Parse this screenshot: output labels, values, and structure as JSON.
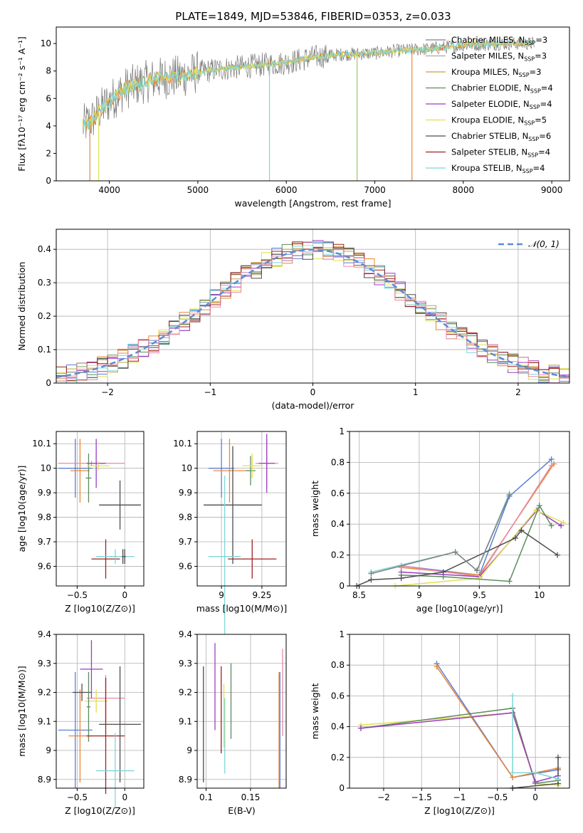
{
  "title": "PLATE=1849, MJD=53846, FIBERID=0353, z=0.033",
  "colors": {
    "Chabrier MILES": "#5b7fd6",
    "Salpeter MILES": "#e8873a",
    "Kroupa MILES": "#c8a040",
    "Chabrier ELODIE": "#5f8a5f",
    "Salpeter ELODIE": "#9a3ec0",
    "Kroupa ELODIE": "#e0e050",
    "Chabrier STELIB": "#4d4d4d",
    "Salpeter STELIB": "#a02020",
    "Kroupa STELIB": "#7fd6d6",
    "normal": "#5b8bd6",
    "pink": "#e88aa8"
  },
  "legend_spectrum": [
    {
      "name": "Chabrier MILES",
      "prefix": "Chabrier MILES, N",
      "sub": "SSP",
      "suffix": "=3",
      "color": "#808080"
    },
    {
      "name": "Salpeter MILES",
      "prefix": "Salpeter MILES, N",
      "sub": "SSP",
      "suffix": "=3",
      "color": "#aaaaaa"
    },
    {
      "name": "Kroupa MILES",
      "prefix": "Kroupa MILES, N",
      "sub": "SSP",
      "suffix": "=3",
      "color": "#c8a040"
    },
    {
      "name": "Chabrier ELODIE",
      "prefix": "Chabrier ELODIE, N",
      "sub": "SSP",
      "suffix": "=4",
      "color": "#5f8a5f"
    },
    {
      "name": "Salpeter ELODIE",
      "prefix": "Salpeter ELODIE, N",
      "sub": "SSP",
      "suffix": "=4",
      "color": "#9a3ec0"
    },
    {
      "name": "Kroupa ELODIE",
      "prefix": "Kroupa ELODIE, N",
      "sub": "SSP",
      "suffix": "=5",
      "color": "#e0e050"
    },
    {
      "name": "Chabrier STELIB",
      "prefix": "Chabrier STELIB, N",
      "sub": "SSP",
      "suffix": "=6",
      "color": "#4d4d4d"
    },
    {
      "name": "Salpeter STELIB",
      "prefix": "Salpeter STELIB, N",
      "sub": "SSP",
      "suffix": "=4",
      "color": "#a02020"
    },
    {
      "name": "Kroupa STELIB",
      "prefix": "Kroupa STELIB, N",
      "sub": "SSP",
      "suffix": "=4",
      "color": "#7fd6d6"
    }
  ],
  "chart_data": [
    {
      "id": "spectrum",
      "type": "line",
      "title": "PLATE=1849, MJD=53846, FIBERID=0353, z=0.033",
      "xlabel": "wavelength [Angstrom, rest frame]",
      "ylabel": "Flux [fλ10⁻¹⁷ erg cm⁻² s⁻¹ A⁻¹]",
      "xlim": [
        3400,
        9200
      ],
      "ylim": [
        0,
        11.2
      ],
      "xticks": [
        4000,
        5000,
        6000,
        7000,
        8000,
        9000
      ],
      "yticks": [
        0,
        2,
        4,
        6,
        8,
        10
      ],
      "continuum": [
        [
          3700,
          4.0
        ],
        [
          3800,
          4.4
        ],
        [
          3900,
          5.2
        ],
        [
          4000,
          5.8
        ],
        [
          4200,
          6.8
        ],
        [
          4400,
          7.2
        ],
        [
          4600,
          7.5
        ],
        [
          4800,
          7.6
        ],
        [
          5000,
          7.9
        ],
        [
          5200,
          8.1
        ],
        [
          5500,
          8.3
        ],
        [
          5800,
          8.5
        ],
        [
          6000,
          8.6
        ],
        [
          6300,
          9.0
        ],
        [
          6600,
          9.2
        ],
        [
          7000,
          9.3
        ],
        [
          7300,
          9.5
        ],
        [
          7600,
          9.6
        ],
        [
          8000,
          9.9
        ],
        [
          8500,
          10.0
        ],
        [
          8700,
          10.0
        ]
      ],
      "dips": [
        {
          "x": 5810,
          "color": "#7fd6d6"
        },
        {
          "x": 6800,
          "color": "#9acc60"
        },
        {
          "x": 7420,
          "color": "#e8873a"
        },
        {
          "x": 3780,
          "color": "#e8873a"
        },
        {
          "x": 3880,
          "color": "#e0e050"
        }
      ]
    },
    {
      "id": "residuals",
      "type": "bar",
      "xlabel": "(data-model)/error",
      "ylabel": "Normed distribution",
      "xlim": [
        -2.5,
        2.5
      ],
      "ylim": [
        0,
        0.46
      ],
      "xticks": [
        -2,
        -1,
        0,
        1,
        2
      ],
      "yticks": [
        0.0,
        0.1,
        0.2,
        0.3,
        0.4
      ],
      "bin_width": 0.1,
      "bin_start": -2.5,
      "bins": 50,
      "legend": "𝒩(0, 1)",
      "series_colors": [
        "#5b7fd6",
        "#e8873a",
        "#c8a040",
        "#5f8a5f",
        "#9a3ec0",
        "#e0e050",
        "#4d4d4d",
        "#a02020",
        "#7fd6d6",
        "#e88aa8"
      ]
    },
    {
      "id": "age_vs_Z",
      "type": "scatter",
      "xlabel": "Z [log10(Z/Z⊙)]",
      "ylabel": "age [log10(age/yr)]",
      "xlim": [
        -0.72,
        0.2
      ],
      "ylim": [
        9.52,
        10.15
      ],
      "xticks": [
        -0.5,
        0.0
      ],
      "yticks": [
        9.6,
        9.7,
        9.8,
        9.9,
        10.0,
        10.1
      ],
      "points": [
        {
          "x": -0.52,
          "y": 10.0,
          "xerr": 0.18,
          "yerr": 0.12,
          "color": "#5b7fd6"
        },
        {
          "x": -0.47,
          "y": 9.99,
          "xerr": 0.1,
          "yerr": 0.13,
          "color": "#e8873a"
        },
        {
          "x": -0.35,
          "y": 10.02,
          "xerr": 0.35,
          "yerr": 0.01,
          "color": "#e88aa8"
        },
        {
          "x": -0.38,
          "y": 9.96,
          "xerr": 0.03,
          "yerr": 0.1,
          "color": "#5f8a5f"
        },
        {
          "x": -0.3,
          "y": 10.02,
          "xerr": 0.1,
          "yerr": 0.1,
          "color": "#9a3ec0"
        },
        {
          "x": -0.28,
          "y": 10.01,
          "xerr": 0.12,
          "yerr": 0.02,
          "color": "#e0e050"
        },
        {
          "x": -0.05,
          "y": 9.85,
          "xerr": 0.22,
          "yerr": 0.1,
          "color": "#4d4d4d"
        },
        {
          "x": -0.2,
          "y": 9.63,
          "xerr": 0.15,
          "yerr": 0.08,
          "color": "#a02020"
        },
        {
          "x": -0.1,
          "y": 9.64,
          "xerr": 0.2,
          "yerr": 0.03,
          "color": "#7fd6d6"
        },
        {
          "x": -0.02,
          "y": 9.64,
          "xerr": 0.01,
          "yerr": 0.03,
          "color": "#4d4d4d"
        },
        {
          "x": 0.0,
          "y": 9.64,
          "xerr": 0.01,
          "yerr": 0.03,
          "color": "#4d4d4d"
        }
      ]
    },
    {
      "id": "age_vs_mass",
      "type": "scatter",
      "xlabel": "mass [log10(M/M⊙)]",
      "ylabel": "",
      "xlim": [
        8.85,
        9.4
      ],
      "ylim": [
        9.52,
        10.15
      ],
      "xticks": [
        9.0,
        9.25
      ],
      "yticks": [
        9.6,
        9.7,
        9.8,
        9.9,
        10.0,
        10.1
      ],
      "points": [
        {
          "x": 9.0,
          "y": 10.0,
          "xerr": 0.08,
          "yerr": 0.12,
          "color": "#5b7fd6"
        },
        {
          "x": 9.05,
          "y": 9.99,
          "xerr": 0.1,
          "yerr": 0.13,
          "color": "#e8873a"
        },
        {
          "x": 9.28,
          "y": 10.02,
          "xerr": 0.07,
          "yerr": 0.1,
          "color": "#e88aa8"
        },
        {
          "x": 9.18,
          "y": 9.99,
          "xerr": 0.03,
          "yerr": 0.06,
          "color": "#5f8a5f"
        },
        {
          "x": 9.28,
          "y": 10.02,
          "xerr": 0.05,
          "yerr": 0.12,
          "color": "#9a3ec0"
        },
        {
          "x": 9.19,
          "y": 10.01,
          "xerr": 0.06,
          "yerr": 0.05,
          "color": "#e0e050"
        },
        {
          "x": 9.07,
          "y": 9.85,
          "xerr": 0.18,
          "yerr": 0.24,
          "color": "#4d4d4d"
        },
        {
          "x": 9.19,
          "y": 9.63,
          "xerr": 0.15,
          "yerr": 0.08,
          "color": "#a02020"
        },
        {
          "x": 9.02,
          "y": 9.64,
          "xerr": 0.1,
          "yerr": 0.33,
          "color": "#7fd6d6"
        }
      ]
    },
    {
      "id": "massweight_vs_age",
      "type": "line",
      "xlabel": "age [log10(age/yr)]",
      "ylabel": "mass weight",
      "xlim": [
        8.42,
        10.25
      ],
      "ylim": [
        0,
        1.0
      ],
      "xticks": [
        8.5,
        9.0,
        9.5,
        10.0
      ],
      "yticks": [
        0.0,
        0.2,
        0.4,
        0.6,
        0.8,
        1.0
      ],
      "series": [
        {
          "color": "#5b7fd6",
          "x": [
            8.85,
            9.5,
            9.75,
            10.1
          ],
          "y": [
            0.13,
            0.07,
            0.58,
            0.82
          ]
        },
        {
          "color": "#e8873a",
          "x": [
            8.85,
            9.5,
            10.12
          ],
          "y": [
            0.12,
            0.07,
            0.79
          ]
        },
        {
          "color": "#e88aa8",
          "x": [
            8.85,
            9.5,
            10.1
          ],
          "y": [
            0.13,
            0.06,
            0.78
          ]
        },
        {
          "color": "#9a3ec0",
          "x": [
            8.85,
            9.5,
            9.98,
            10.18
          ],
          "y": [
            0.09,
            0.06,
            0.49,
            0.39
          ]
        },
        {
          "color": "#e0e050",
          "x": [
            8.8,
            9.5,
            9.97,
            10.2
          ],
          "y": [
            0.0,
            0.05,
            0.49,
            0.41
          ]
        },
        {
          "color": "#5f8a5f",
          "x": [
            8.85,
            9.2,
            9.75,
            10.0,
            10.1
          ],
          "y": [
            0.07,
            0.06,
            0.03,
            0.52,
            0.39
          ]
        },
        {
          "color": "#4d4d4d",
          "x": [
            8.48,
            8.6,
            8.85,
            9.2,
            9.8,
            9.85,
            10.15
          ],
          "y": [
            0.0,
            0.04,
            0.05,
            0.09,
            0.31,
            0.36,
            0.2
          ]
        },
        {
          "color": "#7fd6d6",
          "x": [
            8.6,
            9.3,
            9.48,
            9.75
          ],
          "y": [
            0.09,
            0.22,
            0.1,
            0.6
          ]
        },
        {
          "color": "#808080",
          "x": [
            8.6,
            9.3,
            9.48,
            9.75
          ],
          "y": [
            0.08,
            0.22,
            0.1,
            0.59
          ]
        }
      ]
    },
    {
      "id": "mass_vs_Z",
      "type": "scatter",
      "xlabel": "Z [log10(Z/Z⊙)]",
      "ylabel": "mass [log10(M/M⊙)]",
      "xlim": [
        -0.72,
        0.2
      ],
      "ylim": [
        8.87,
        9.4
      ],
      "xticks": [
        -0.5,
        0.0
      ],
      "yticks": [
        8.9,
        9.0,
        9.1,
        9.2,
        9.3,
        9.4
      ],
      "points": [
        {
          "x": -0.52,
          "y": 9.07,
          "xerr": 0.18,
          "yerr": 0.2,
          "color": "#5b7fd6"
        },
        {
          "x": -0.47,
          "y": 9.05,
          "xerr": 0.12,
          "yerr": 0.16,
          "color": "#e8873a"
        },
        {
          "x": -0.2,
          "y": 9.18,
          "xerr": 0.2,
          "yerr": 0.08,
          "color": "#e88aa8"
        },
        {
          "x": -0.45,
          "y": 9.2,
          "xerr": 0.1,
          "yerr": 0.03,
          "color": "#4d4d4d"
        },
        {
          "x": -0.35,
          "y": 9.28,
          "xerr": 0.12,
          "yerr": 0.1,
          "color": "#9a3ec0"
        },
        {
          "x": -0.3,
          "y": 9.17,
          "xerr": 0.12,
          "yerr": 0.04,
          "color": "#e0e050"
        },
        {
          "x": -0.38,
          "y": 9.15,
          "xerr": 0.02,
          "yerr": 0.12,
          "color": "#5f8a5f"
        },
        {
          "x": -0.2,
          "y": 9.05,
          "xerr": 0.2,
          "yerr": 0.2,
          "color": "#a02020"
        },
        {
          "x": -0.05,
          "y": 9.09,
          "xerr": 0.22,
          "yerr": 0.2,
          "color": "#4d4d4d"
        },
        {
          "x": -0.1,
          "y": 8.93,
          "xerr": 0.2,
          "yerr": 0.13,
          "color": "#7fd6d6"
        }
      ]
    },
    {
      "id": "mass_vs_EBV",
      "type": "scatter",
      "xlabel": "E(B-V)",
      "ylabel": "",
      "xlim": [
        0.09,
        0.19
      ],
      "ylim": [
        8.87,
        9.4
      ],
      "xticks": [
        0.1,
        0.15
      ],
      "yticks": [
        8.9,
        9.0,
        9.1,
        9.2,
        9.3,
        9.4
      ],
      "points": [
        {
          "x": 0.097,
          "y": 9.09,
          "xerr": 0,
          "yerr": 0.2,
          "color": "#4d4d4d"
        },
        {
          "x": 0.11,
          "y": 9.22,
          "xerr": 0,
          "yerr": 0.15,
          "color": "#9a3ec0"
        },
        {
          "x": 0.117,
          "y": 9.14,
          "xerr": 0,
          "yerr": 0.15,
          "color": "#a02020"
        },
        {
          "x": 0.12,
          "y": 9.12,
          "xerr": 0,
          "yerr": 0.11,
          "color": "#e0e050"
        },
        {
          "x": 0.121,
          "y": 9.05,
          "xerr": 0,
          "yerr": 0.13,
          "color": "#7fd6d6"
        },
        {
          "x": 0.128,
          "y": 9.17,
          "xerr": 0,
          "yerr": 0.13,
          "color": "#5f8a5f"
        },
        {
          "x": 0.182,
          "y": 9.07,
          "xerr": 0,
          "yerr": 0.2,
          "color": "#e8873a"
        },
        {
          "x": 0.183,
          "y": 9.07,
          "xerr": 0,
          "yerr": 0.2,
          "color": "#5b7fd6"
        },
        {
          "x": 0.186,
          "y": 9.2,
          "xerr": 0,
          "yerr": 0.15,
          "color": "#e88aa8"
        }
      ]
    },
    {
      "id": "massweight_vs_Z",
      "type": "line",
      "xlabel": "Z [log10(Z/Z⊙)]",
      "ylabel": "mass weight",
      "xlim": [
        -2.45,
        0.45
      ],
      "ylim": [
        0,
        1.0
      ],
      "xticks": [
        -2.0,
        -1.5,
        -1.0,
        -0.5,
        0.0
      ],
      "yticks": [
        0.0,
        0.2,
        0.4,
        0.6,
        0.8,
        1.0
      ],
      "series": [
        {
          "color": "#5b7fd6",
          "x": [
            -1.3,
            -0.3,
            0.3
          ],
          "y": [
            0.81,
            0.07,
            0.12
          ]
        },
        {
          "color": "#e8873a",
          "x": [
            -1.3,
            -0.3,
            0.3
          ],
          "y": [
            0.79,
            0.07,
            0.13
          ]
        },
        {
          "color": "#e0e050",
          "x": [
            -2.3,
            -0.3,
            0.0,
            0.3
          ],
          "y": [
            0.41,
            0.49,
            0.03,
            0.02
          ]
        },
        {
          "color": "#5f8a5f",
          "x": [
            -2.3,
            -0.3,
            0.0,
            0.3
          ],
          "y": [
            0.39,
            0.52,
            0.03,
            0.05
          ]
        },
        {
          "color": "#9a3ec0",
          "x": [
            -2.3,
            -0.3,
            0.0,
            0.3
          ],
          "y": [
            0.39,
            0.49,
            0.04,
            0.08
          ]
        },
        {
          "color": "#4d4d4d",
          "x": [
            -0.3,
            -0.3,
            0.3,
            0.3
          ],
          "y": [
            0.0,
            0.0,
            0.03,
            0.2
          ]
        },
        {
          "color": "#7fd6d6",
          "x": [
            -0.3,
            -0.3,
            0.0,
            0.3
          ],
          "y": [
            0.6,
            0.1,
            0.1,
            0.06
          ]
        }
      ]
    }
  ]
}
